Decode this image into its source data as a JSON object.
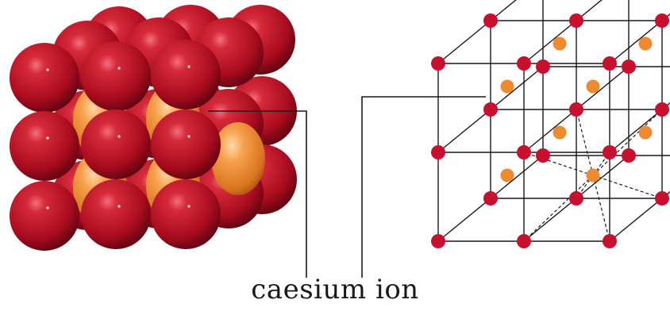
{
  "caption": "caesium ion",
  "colors": {
    "chloride": "#c8102e",
    "caesium": "#ee8a2f",
    "line": "#1a1a1a"
  }
}
